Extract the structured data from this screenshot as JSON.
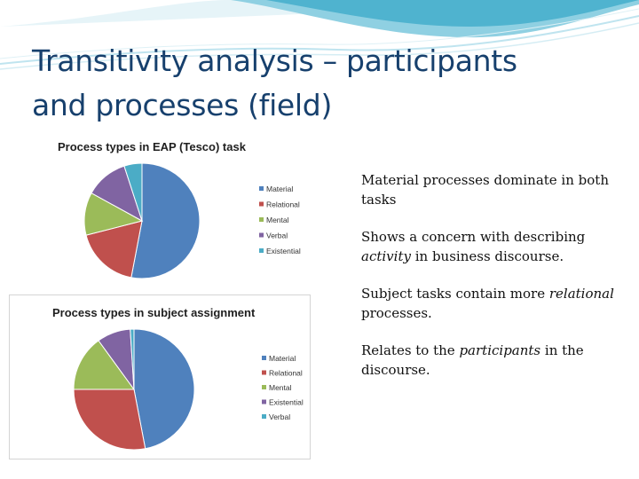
{
  "slide": {
    "title_line1": "Transitivity analysis – participants",
    "title_line2": "and processes (field)"
  },
  "colors": {
    "title": "#17406d",
    "header_wave": "#4fb3cf",
    "header_wave_light": "#bfe4ef"
  },
  "bullets": [
    {
      "parts": [
        {
          "text": "Material processes dominate in both tasks",
          "italic": false
        }
      ]
    },
    {
      "parts": [
        {
          "text": "Shows a concern with describing ",
          "italic": false
        },
        {
          "text": "activity",
          "italic": true
        },
        {
          "text": " in business discourse.",
          "italic": false
        }
      ]
    },
    {
      "parts": [
        {
          "text": "Subject tasks contain more ",
          "italic": false
        },
        {
          "text": "relational",
          "italic": true
        },
        {
          "text": " processes.",
          "italic": false
        }
      ]
    },
    {
      "parts": [
        {
          "text": "Relates to the ",
          "italic": false
        },
        {
          "text": "participants",
          "italic": true
        },
        {
          "text": " in the discourse.",
          "italic": false
        }
      ]
    }
  ],
  "chart_data": [
    {
      "type": "pie",
      "title": "Process types in EAP (Tesco) task",
      "legend_position": "right",
      "series": [
        {
          "name": "Material",
          "value": 53,
          "color": "#4f81bd"
        },
        {
          "name": "Relational",
          "value": 18,
          "color": "#c0504d"
        },
        {
          "name": "Mental",
          "value": 12,
          "color": "#9bbb59"
        },
        {
          "name": "Verbal",
          "value": 12,
          "color": "#8064a2"
        },
        {
          "name": "Existential",
          "value": 5,
          "color": "#4bacc6"
        }
      ]
    },
    {
      "type": "pie",
      "title": "Process types in subject assignment",
      "legend_position": "right",
      "series": [
        {
          "name": "Material",
          "value": 47,
          "color": "#4f81bd"
        },
        {
          "name": "Relational",
          "value": 28,
          "color": "#c0504d"
        },
        {
          "name": "Mental",
          "value": 15,
          "color": "#9bbb59"
        },
        {
          "name": "Existential",
          "value": 9,
          "color": "#8064a2"
        },
        {
          "name": "Verbal",
          "value": 1,
          "color": "#4bacc6"
        }
      ]
    }
  ]
}
